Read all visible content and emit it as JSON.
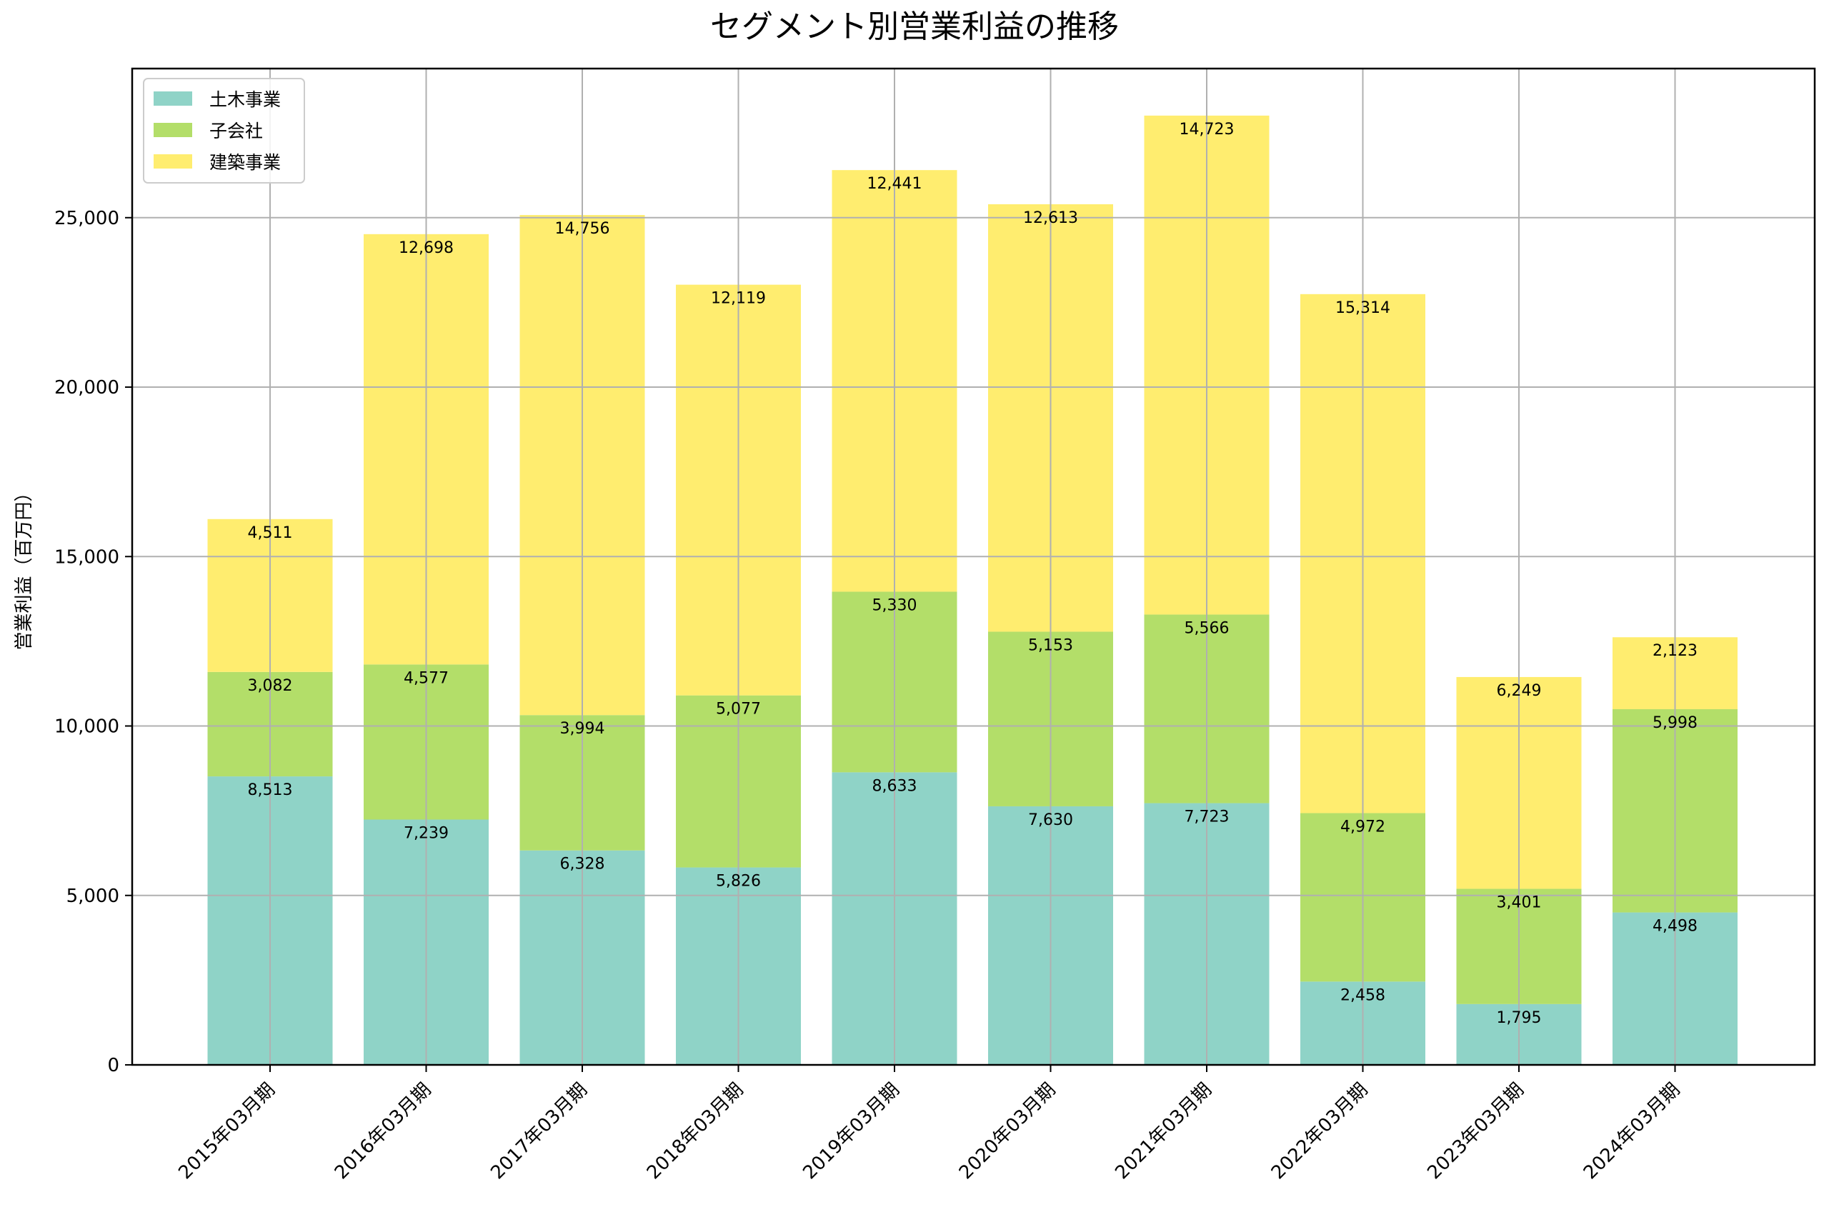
{
  "chart_data": {
    "type": "bar",
    "stacked": true,
    "title": "セグメント別営業利益の推移",
    "xlabel": "",
    "ylabel": "営業利益（百万円）",
    "ylim": [
      0,
      29400
    ],
    "yticks": [
      0,
      5000,
      10000,
      15000,
      20000,
      25000
    ],
    "ytick_labels": [
      "0",
      "5,000",
      "10,000",
      "15,000",
      "20,000",
      "25,000"
    ],
    "grid": true,
    "legend_position": "top-left",
    "categories": [
      "2015年03月期",
      "2016年03月期",
      "2017年03月期",
      "2018年03月期",
      "2019年03月期",
      "2020年03月期",
      "2021年03月期",
      "2022年03月期",
      "2023年03月期",
      "2024年03月期"
    ],
    "series": [
      {
        "name": "土木事業",
        "color": "#8fd3c7",
        "values": [
          8513,
          7239,
          6328,
          5826,
          8633,
          7630,
          7723,
          2458,
          1795,
          4498
        ],
        "labels": [
          "8,513",
          "7,239",
          "6,328",
          "5,826",
          "8,633",
          "7,630",
          "7,723",
          "2,458",
          "1,795",
          "4,498"
        ]
      },
      {
        "name": "子会社",
        "color": "#b3de69",
        "values": [
          3082,
          4577,
          3994,
          5077,
          5330,
          5153,
          5566,
          4972,
          3401,
          5998
        ],
        "labels": [
          "3,082",
          "4,577",
          "3,994",
          "5,077",
          "5,330",
          "5,153",
          "5,566",
          "4,972",
          "3,401",
          "5,998"
        ]
      },
      {
        "name": "建築事業",
        "color": "#ffed6f",
        "values": [
          4511,
          12698,
          14756,
          12119,
          12441,
          12613,
          14723,
          15314,
          6249,
          2123
        ],
        "labels": [
          "4,511",
          "12,698",
          "14,756",
          "12,119",
          "12,441",
          "12,613",
          "14,723",
          "15,314",
          "6,249",
          "2,123"
        ]
      }
    ]
  }
}
